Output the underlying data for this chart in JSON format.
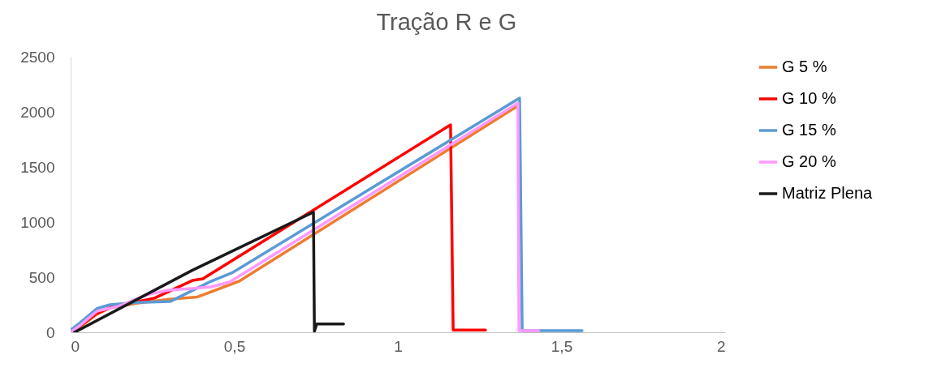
{
  "chart_data": {
    "type": "line",
    "title": "Tração R e G",
    "xlim": [
      0,
      2
    ],
    "xticks": [
      0,
      {
        "value": 0.5,
        "label": "0,5"
      },
      1,
      {
        "value": 1.5,
        "label": "1,5"
      },
      2
    ],
    "ylim": [
      0,
      2500
    ],
    "yticks": [
      0,
      500,
      1000,
      1500,
      2000,
      2500
    ],
    "grid": false,
    "legend": "right",
    "series": [
      {
        "name": "G 5 %",
        "color": "#ed7d31",
        "x": [
          0,
          0.03,
          0.08,
          0.12,
          0.2,
          0.3,
          0.387,
          0.516,
          1.37
        ],
        "values": [
          0,
          50,
          165,
          220,
          262,
          300,
          320,
          465,
          2060
        ]
      },
      {
        "name": "G 10 %",
        "color": "#ff0000",
        "x": [
          0,
          0.03,
          0.08,
          0.124,
          0.256,
          0.372,
          0.404,
          1.161,
          1.169,
          1.268
        ],
        "values": [
          0,
          60,
          170,
          230,
          310,
          470,
          485,
          1882,
          20,
          20
        ]
      },
      {
        "name": "G 15 %",
        "color": "#5b9bd5",
        "x": [
          0,
          0.03,
          0.08,
          0.12,
          0.2,
          0.305,
          0.429,
          0.496,
          1.372,
          1.38,
          1.563
        ],
        "values": [
          20,
          90,
          215,
          250,
          270,
          280,
          463,
          544,
          2125,
          15,
          15
        ]
      },
      {
        "name": "G 20 %",
        "color": "#ff99ff",
        "x": [
          0,
          0.03,
          0.08,
          0.15,
          0.23,
          0.298,
          0.372,
          0.429,
          0.486,
          1.367,
          1.37,
          1.43
        ],
        "values": [
          0,
          65,
          190,
          240,
          338,
          382,
          397,
          412,
          456,
          2080,
          15,
          15
        ]
      },
      {
        "name": "Matriz Plena",
        "color": "#1a1a1a",
        "x": [
          0.012,
          0.37,
          0.742,
          0.745,
          0.752,
          0.834
        ],
        "values": [
          0,
          560,
          1090,
          10,
          75,
          75
        ]
      }
    ]
  }
}
